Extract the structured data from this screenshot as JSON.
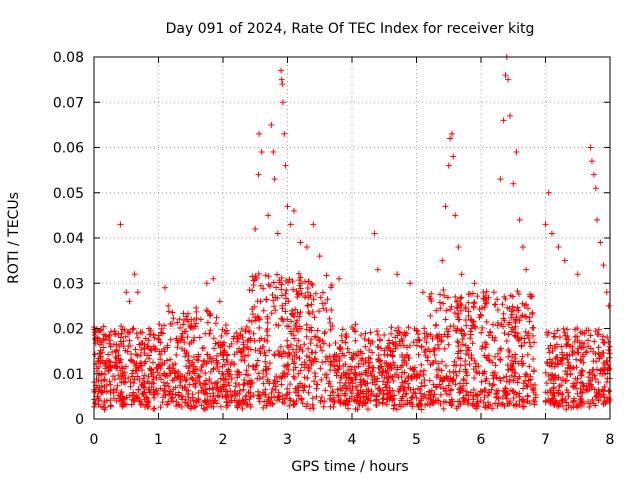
{
  "chart_data": {
    "type": "scatter",
    "title": "Day 091 of 2024, Rate Of TEC Index for receiver kitg",
    "xlabel": "GPS time / hours",
    "ylabel": "ROTI / TECUs",
    "xlim": [
      0,
      8
    ],
    "ylim": [
      0,
      0.08
    ],
    "x_ticks": [
      0,
      1,
      2,
      3,
      4,
      5,
      6,
      7,
      8
    ],
    "x_tick_labels": [
      "0",
      "1",
      "2",
      "3",
      "4",
      "5",
      "6",
      "7",
      "8"
    ],
    "y_ticks": [
      0,
      0.01,
      0.02,
      0.03,
      0.04,
      0.05,
      0.06,
      0.07,
      0.08
    ],
    "y_tick_labels": [
      "0",
      "0.01",
      "0.02",
      "0.03",
      "0.04",
      "0.05",
      "0.06",
      "0.07",
      "0.08"
    ],
    "grid": true,
    "marker": "plus",
    "color": "#ff0000",
    "data_gap_hours": [
      6.85,
      7.0
    ],
    "baseline_band": [
      0.003,
      0.02
    ],
    "series": [
      {
        "name": "ROTI",
        "points": [
          [
            0.41,
            0.043
          ],
          [
            0.5,
            0.028
          ],
          [
            0.55,
            0.026
          ],
          [
            0.63,
            0.032
          ],
          [
            0.68,
            0.028
          ],
          [
            1.1,
            0.029
          ],
          [
            1.15,
            0.025
          ],
          [
            1.75,
            0.03
          ],
          [
            1.85,
            0.031
          ],
          [
            1.95,
            0.026
          ],
          [
            2.5,
            0.042
          ],
          [
            2.55,
            0.054
          ],
          [
            2.56,
            0.063
          ],
          [
            2.6,
            0.059
          ],
          [
            2.7,
            0.045
          ],
          [
            2.75,
            0.065
          ],
          [
            2.78,
            0.059
          ],
          [
            2.8,
            0.053
          ],
          [
            2.85,
            0.041
          ],
          [
            2.9,
            0.077
          ],
          [
            2.91,
            0.075
          ],
          [
            2.92,
            0.074
          ],
          [
            2.93,
            0.07
          ],
          [
            2.95,
            0.063
          ],
          [
            2.97,
            0.056
          ],
          [
            3.0,
            0.047
          ],
          [
            3.05,
            0.043
          ],
          [
            3.1,
            0.046
          ],
          [
            3.2,
            0.039
          ],
          [
            3.3,
            0.038
          ],
          [
            3.4,
            0.043
          ],
          [
            3.5,
            0.036
          ],
          [
            3.8,
            0.031
          ],
          [
            4.35,
            0.041
          ],
          [
            4.4,
            0.033
          ],
          [
            4.7,
            0.032
          ],
          [
            4.9,
            0.03
          ],
          [
            5.1,
            0.028
          ],
          [
            5.2,
            0.027
          ],
          [
            5.4,
            0.035
          ],
          [
            5.45,
            0.047
          ],
          [
            5.5,
            0.056
          ],
          [
            5.52,
            0.062
          ],
          [
            5.55,
            0.063
          ],
          [
            5.57,
            0.058
          ],
          [
            5.6,
            0.045
          ],
          [
            5.65,
            0.038
          ],
          [
            5.7,
            0.032
          ],
          [
            5.9,
            0.03
          ],
          [
            6.2,
            0.028
          ],
          [
            6.3,
            0.053
          ],
          [
            6.35,
            0.066
          ],
          [
            6.38,
            0.076
          ],
          [
            6.4,
            0.08
          ],
          [
            6.42,
            0.075
          ],
          [
            6.45,
            0.067
          ],
          [
            6.5,
            0.052
          ],
          [
            6.55,
            0.059
          ],
          [
            6.6,
            0.044
          ],
          [
            6.65,
            0.038
          ],
          [
            6.7,
            0.033
          ],
          [
            6.78,
            0.027
          ],
          [
            7.0,
            0.043
          ],
          [
            7.05,
            0.05
          ],
          [
            7.1,
            0.041
          ],
          [
            7.2,
            0.038
          ],
          [
            7.3,
            0.035
          ],
          [
            7.5,
            0.032
          ],
          [
            7.7,
            0.06
          ],
          [
            7.72,
            0.057
          ],
          [
            7.75,
            0.054
          ],
          [
            7.78,
            0.051
          ],
          [
            7.8,
            0.044
          ],
          [
            7.85,
            0.039
          ],
          [
            7.9,
            0.034
          ],
          [
            7.95,
            0.028
          ],
          [
            7.98,
            0.025
          ]
        ]
      }
    ]
  }
}
